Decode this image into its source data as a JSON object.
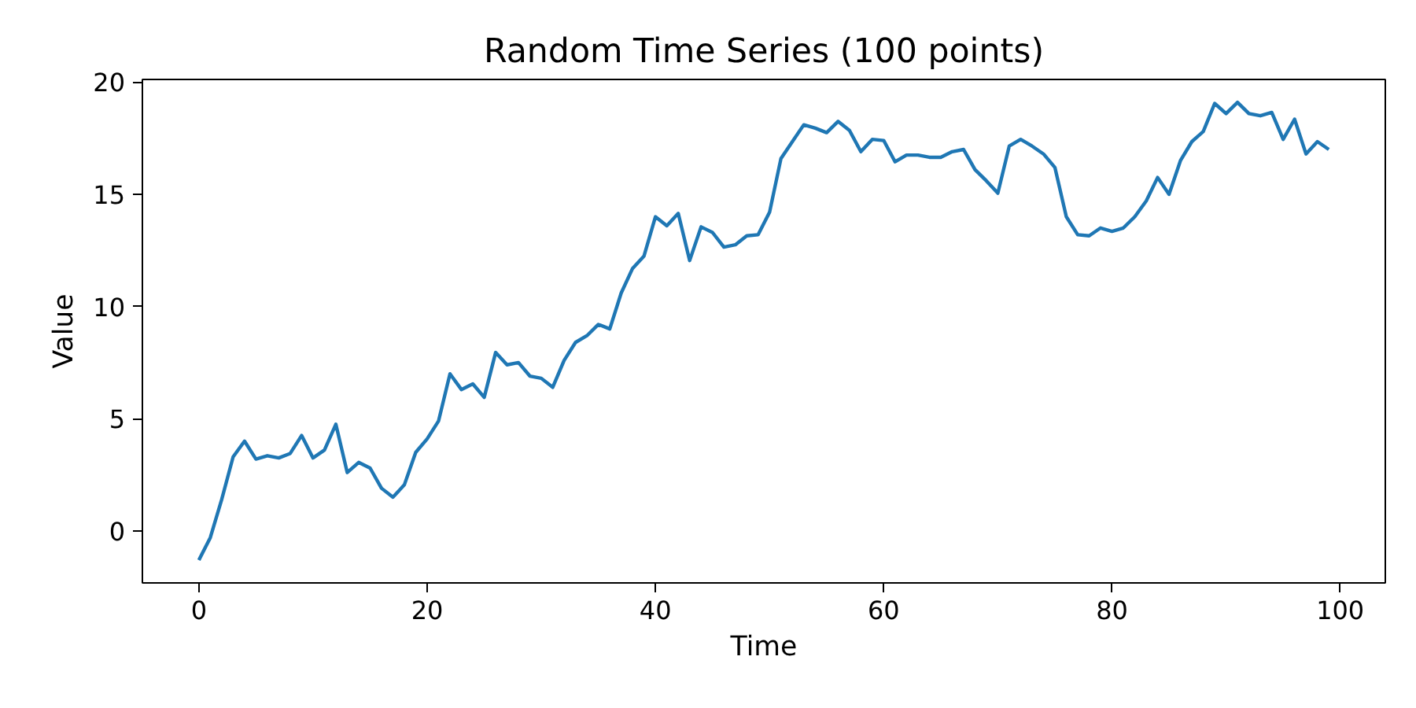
{
  "chart_data": {
    "type": "line",
    "title": "Random Time Series (100 points)",
    "xlabel": "Time",
    "ylabel": "Value",
    "x": [
      0,
      1,
      2,
      3,
      4,
      5,
      6,
      7,
      8,
      9,
      10,
      11,
      12,
      13,
      14,
      15,
      16,
      17,
      18,
      19,
      20,
      21,
      22,
      23,
      24,
      25,
      26,
      27,
      28,
      29,
      30,
      31,
      32,
      33,
      34,
      35,
      36,
      37,
      38,
      39,
      40,
      41,
      42,
      43,
      44,
      45,
      46,
      47,
      48,
      49,
      50,
      51,
      52,
      53,
      54,
      55,
      56,
      57,
      58,
      59,
      60,
      61,
      62,
      63,
      64,
      65,
      66,
      67,
      68,
      69,
      70,
      71,
      72,
      73,
      74,
      75,
      76,
      77,
      78,
      79,
      80,
      81,
      82,
      83,
      84,
      85,
      86,
      87,
      88,
      89,
      90,
      91,
      92,
      93,
      94,
      95,
      96,
      97,
      98,
      99
    ],
    "series": [
      {
        "color": "#1f77b4",
        "values": [
          -1.3,
          -0.3,
          1.4,
          3.3,
          4.0,
          3.2,
          3.35,
          3.25,
          3.45,
          4.25,
          3.25,
          3.6,
          4.75,
          2.6,
          3.05,
          2.8,
          1.9,
          1.5,
          2.05,
          3.5,
          4.1,
          4.9,
          7.0,
          6.3,
          6.55,
          5.95,
          7.95,
          7.4,
          7.5,
          6.9,
          6.8,
          6.4,
          7.6,
          8.4,
          8.7,
          9.2,
          9.0,
          10.6,
          11.7,
          12.25,
          14.0,
          13.6,
          14.15,
          12.05,
          13.55,
          13.3,
          12.65,
          12.75,
          13.15,
          13.2,
          14.2,
          16.6,
          17.35,
          18.1,
          17.95,
          17.75,
          18.25,
          17.85,
          16.9,
          17.45,
          17.4,
          16.45,
          16.75,
          16.75,
          16.65,
          16.65,
          16.9,
          17.0,
          16.1,
          15.6,
          15.05,
          17.15,
          17.45,
          17.15,
          16.8,
          16.2,
          14.0,
          13.2,
          13.15,
          13.5,
          13.35,
          13.5,
          14.0,
          14.7,
          15.75,
          15.0,
          16.5,
          17.35,
          17.8,
          19.05,
          18.6,
          19.1,
          18.6,
          18.5,
          18.65,
          17.45,
          18.35,
          16.8,
          17.35,
          17.0
        ]
      }
    ],
    "xlim": [
      -4.95,
      103.95
    ],
    "ylim": [
      -2.32,
      20.12
    ],
    "xticks": [
      0,
      20,
      40,
      60,
      80,
      100
    ],
    "yticks": [
      0,
      5,
      10,
      15,
      20
    ],
    "grid": false,
    "marker": "none",
    "line_style": "solid"
  }
}
